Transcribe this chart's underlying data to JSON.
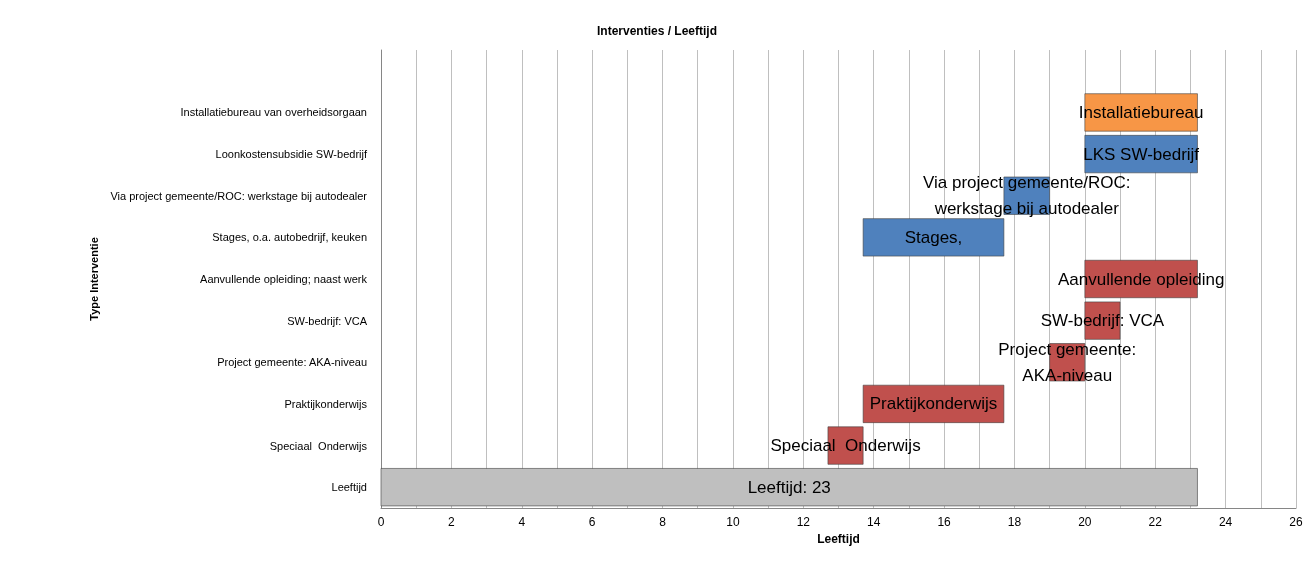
{
  "chart_data": {
    "type": "bar",
    "orientation": "horizontal",
    "title": "Interventies / Leeftijd",
    "xlabel": "Leeftijd",
    "ylabel": "Type Interventie",
    "categories": [
      null,
      "Installatiebureau van overheidsorgaan",
      "Loonkostensubsidie SW-bedrijf",
      "Via project gemeente/ROC: werkstage bij autodealer",
      "Stages, o.a. autobedrijf, keuken",
      "Aanvullende opleiding; naast werk",
      "SW-bedrijf: VCA",
      "Project gemeente: AKA-niveau",
      "Praktijkonderwijs",
      "Speciaal  Onderwijs",
      "Leeftijd"
    ],
    "base": [
      null,
      20,
      20,
      17.7,
      13.7,
      20,
      20,
      19,
      13.7,
      12.7,
      0
    ],
    "values": [
      null,
      3.2,
      3.2,
      1.3,
      4,
      3.2,
      1,
      1,
      4,
      1,
      23.2
    ],
    "colors": [
      null,
      "#f79646",
      "#4f81bd",
      "#4f81bd",
      "#4f81bd",
      "#c0504d",
      "#c0504d",
      "#c0504d",
      "#c0504d",
      "#c0504d",
      "#bfbfbf"
    ],
    "value_labels": [
      null,
      "Installatiebureau",
      "LKS SW-bedrijf",
      "Via project gemeente/ROC:\nwerkstage bij autodealer",
      "Stages,",
      "Aanvullende opleiding",
      "SW-bedrijf: VCA",
      "Project gemeente:\nAKA-niveau",
      "Praktijkonderwijs",
      "Speciaal  Onderwijs",
      "Leeftijd: 23"
    ],
    "xlim": [
      0,
      26
    ],
    "xticks": [
      0,
      {
        "value": 1,
        "label": null
      },
      2,
      {
        "value": 3,
        "label": null
      },
      4,
      {
        "value": 5,
        "label": null
      },
      6,
      {
        "value": 7,
        "label": null
      },
      8,
      {
        "value": 9,
        "label": null
      },
      10,
      {
        "value": 11,
        "label": null
      },
      12,
      {
        "value": 13,
        "label": null
      },
      14,
      {
        "value": 15,
        "label": null
      },
      16,
      {
        "value": 17,
        "label": null
      },
      18,
      {
        "value": 19,
        "label": null
      },
      20,
      {
        "value": 21,
        "label": null
      },
      22,
      {
        "value": 23,
        "label": null
      },
      24,
      {
        "value": 25,
        "label": null
      },
      26
    ],
    "grid": "x"
  }
}
